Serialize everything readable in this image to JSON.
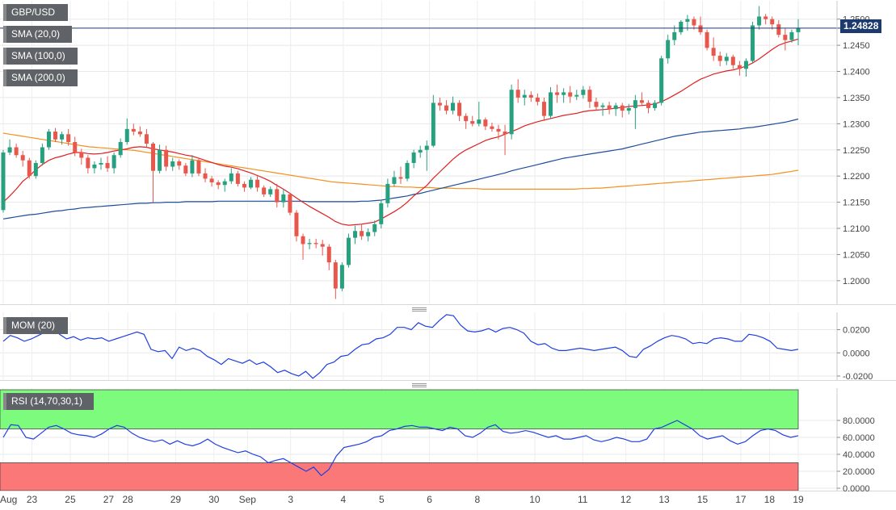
{
  "chart_data": {
    "type": "candlestick",
    "symbol": "GBP/USD",
    "last_price": "1.24828",
    "colors": {
      "up": "#26a07e",
      "down": "#e8574c",
      "sma20": "#e02020",
      "sma100": "#1e4d9c",
      "sma200": "#f4901e",
      "mom": "#1f3fe0",
      "rsi": "#1f3fe0",
      "rsi_overbought_fill": "#7dfb7d",
      "rsi_oversold_fill": "#fb7878"
    },
    "legend": {
      "main": [
        {
          "label": "GBP/USD",
          "color": "#26a07e"
        },
        {
          "label": "SMA (20,0)",
          "color": "#e02020"
        },
        {
          "label": "SMA (100,0)",
          "color": "#1e4d9c"
        },
        {
          "label": "SMA (200,0)",
          "color": "#f4901e"
        }
      ],
      "mom": {
        "label": "MOM (20)",
        "color": "#1f3fe0"
      },
      "rsi": {
        "label": "RSI (14,70,30,1)",
        "color": "#1f3fe0"
      }
    },
    "price_axis": {
      "ylim": [
        1.1955,
        1.2535
      ],
      "ticks": [
        "1.2500",
        "1.2450",
        "1.2400",
        "1.2350",
        "1.2300",
        "1.2250",
        "1.2200",
        "1.2150",
        "1.2100",
        "1.2050",
        "1.2000"
      ]
    },
    "mom_axis": {
      "ylim": [
        -0.0235,
        0.035
      ],
      "ticks": [
        "0.0200",
        "0.0000",
        "-0.0200"
      ]
    },
    "rsi_axis": {
      "ylim": [
        0,
        100
      ],
      "ticks": [
        "80.0000",
        "60.0000",
        "40.0000",
        "20.0000",
        "0.0000"
      ],
      "overbought": 70,
      "oversold": 30
    },
    "grid": true,
    "x_labels": [
      "Aug",
      "23",
      "25",
      "27",
      "28",
      "29",
      "30",
      "Sep",
      "3",
      "4",
      "5",
      "6",
      "8",
      "10",
      "11",
      "12",
      "13",
      "15",
      "17",
      "18",
      "19"
    ],
    "candles": [
      [
        1.2135,
        1.225,
        1.213,
        1.2245
      ],
      [
        1.2245,
        1.227,
        1.224,
        1.2255
      ],
      [
        1.2255,
        1.2262,
        1.2235,
        1.224
      ],
      [
        1.224,
        1.2248,
        1.2218,
        1.223
      ],
      [
        1.223,
        1.2235,
        1.2195,
        1.22
      ],
      [
        1.22,
        1.223,
        1.2195,
        1.2225
      ],
      [
        1.2225,
        1.2262,
        1.222,
        1.2255
      ],
      [
        1.2255,
        1.229,
        1.225,
        1.2285
      ],
      [
        1.2285,
        1.2292,
        1.2265,
        1.227
      ],
      [
        1.227,
        1.2285,
        1.226,
        1.228
      ],
      [
        1.228,
        1.229,
        1.2258,
        1.2265
      ],
      [
        1.2265,
        1.2275,
        1.2238,
        1.2245
      ],
      [
        1.2245,
        1.2252,
        1.2222,
        1.2235
      ],
      [
        1.2235,
        1.224,
        1.2205,
        1.2215
      ],
      [
        1.2215,
        1.2228,
        1.2205,
        1.2222
      ],
      [
        1.2222,
        1.2235,
        1.2212,
        1.2225
      ],
      [
        1.2225,
        1.2238,
        1.2208,
        1.2215
      ],
      [
        1.2215,
        1.2245,
        1.2205,
        1.224
      ],
      [
        1.224,
        1.2272,
        1.2235,
        1.2265
      ],
      [
        1.2265,
        1.231,
        1.226,
        1.229
      ],
      [
        1.229,
        1.23,
        1.2278,
        1.2285
      ],
      [
        1.2285,
        1.2295,
        1.2275,
        1.228
      ],
      [
        1.228,
        1.229,
        1.2255,
        1.2262
      ],
      [
        1.2262,
        1.2265,
        1.215,
        1.221
      ],
      [
        1.221,
        1.226,
        1.2205,
        1.225
      ],
      [
        1.225,
        1.2258,
        1.221,
        1.2218
      ],
      [
        1.2218,
        1.2235,
        1.221,
        1.2228
      ],
      [
        1.2228,
        1.2232,
        1.2212,
        1.222
      ],
      [
        1.222,
        1.2225,
        1.22,
        1.2205
      ],
      [
        1.2205,
        1.224,
        1.2198,
        1.223
      ],
      [
        1.223,
        1.2235,
        1.22,
        1.2205
      ],
      [
        1.2205,
        1.2215,
        1.2188,
        1.2195
      ],
      [
        1.2195,
        1.22,
        1.218,
        1.2188
      ],
      [
        1.2188,
        1.2192,
        1.2175,
        1.2183
      ],
      [
        1.2183,
        1.2195,
        1.217,
        1.219
      ],
      [
        1.219,
        1.2215,
        1.2185,
        1.2205
      ],
      [
        1.2205,
        1.221,
        1.218,
        1.2185
      ],
      [
        1.2185,
        1.219,
        1.217,
        1.2178
      ],
      [
        1.2178,
        1.2198,
        1.2175,
        1.2193
      ],
      [
        1.2193,
        1.22,
        1.217,
        1.2178
      ],
      [
        1.2178,
        1.2182,
        1.216,
        1.2165
      ],
      [
        1.2165,
        1.218,
        1.216,
        1.2175
      ],
      [
        1.2175,
        1.2185,
        1.214,
        1.215
      ],
      [
        1.215,
        1.2175,
        1.214,
        1.2165
      ],
      [
        1.2165,
        1.2168,
        1.2125,
        1.213
      ],
      [
        1.213,
        1.2135,
        1.2075,
        1.2085
      ],
      [
        1.2085,
        1.209,
        1.204,
        1.207
      ],
      [
        1.207,
        1.208,
        1.206,
        1.2072
      ],
      [
        1.2072,
        1.208,
        1.2062,
        1.207
      ],
      [
        1.207,
        1.2078,
        1.2048,
        1.2065
      ],
      [
        1.2065,
        1.207,
        1.202,
        1.2035
      ],
      [
        1.2035,
        1.204,
        1.1965,
        1.1985
      ],
      [
        1.1985,
        1.2035,
        1.198,
        1.203
      ],
      [
        1.203,
        1.209,
        1.2025,
        1.2082
      ],
      [
        1.2082,
        1.2105,
        1.207,
        1.2095
      ],
      [
        1.2095,
        1.2108,
        1.2078,
        1.2085
      ],
      [
        1.2085,
        1.21,
        1.2075,
        1.2093
      ],
      [
        1.2093,
        1.2115,
        1.2085,
        1.2108
      ],
      [
        1.2108,
        1.2155,
        1.21,
        1.2148
      ],
      [
        1.2148,
        1.2195,
        1.214,
        1.2185
      ],
      [
        1.2185,
        1.221,
        1.218,
        1.2198
      ],
      [
        1.2198,
        1.2218,
        1.2185,
        1.2195
      ],
      [
        1.2195,
        1.223,
        1.219,
        1.2225
      ],
      [
        1.2225,
        1.225,
        1.2215,
        1.2245
      ],
      [
        1.2245,
        1.2258,
        1.2235,
        1.225
      ],
      [
        1.225,
        1.2268,
        1.221,
        1.2258
      ],
      [
        1.2258,
        1.2355,
        1.2255,
        1.234
      ],
      [
        1.234,
        1.235,
        1.2325,
        1.2335
      ],
      [
        1.2335,
        1.2345,
        1.2318,
        1.2325
      ],
      [
        1.2325,
        1.2352,
        1.2318,
        1.234
      ],
      [
        1.234,
        1.2345,
        1.2305,
        1.2315
      ],
      [
        1.2315,
        1.232,
        1.229,
        1.2305
      ],
      [
        1.2305,
        1.2315,
        1.2295,
        1.23
      ],
      [
        1.23,
        1.2342,
        1.2295,
        1.2308
      ],
      [
        1.2308,
        1.2312,
        1.2288,
        1.2295
      ],
      [
        1.2295,
        1.2302,
        1.2285,
        1.229
      ],
      [
        1.229,
        1.2298,
        1.227,
        1.2285
      ],
      [
        1.2285,
        1.2298,
        1.224,
        1.228
      ],
      [
        1.228,
        1.2375,
        1.227,
        1.2365
      ],
      [
        1.2365,
        1.2385,
        1.234,
        1.235
      ],
      [
        1.235,
        1.2365,
        1.2335,
        1.2355
      ],
      [
        1.2355,
        1.2362,
        1.2342,
        1.235
      ],
      [
        1.235,
        1.2358,
        1.2335,
        1.2342
      ],
      [
        1.2342,
        1.235,
        1.2305,
        1.2315
      ],
      [
        1.2315,
        1.237,
        1.231,
        1.236
      ],
      [
        1.236,
        1.2375,
        1.234,
        1.2355
      ],
      [
        1.2355,
        1.2368,
        1.234,
        1.236
      ],
      [
        1.236,
        1.2372,
        1.234,
        1.2352
      ],
      [
        1.2352,
        1.2365,
        1.2345,
        1.2355
      ],
      [
        1.2355,
        1.2372,
        1.2348,
        1.2365
      ],
      [
        1.2365,
        1.2372,
        1.233,
        1.2342
      ],
      [
        1.2342,
        1.235,
        1.2325,
        1.2332
      ],
      [
        1.2332,
        1.234,
        1.2315,
        1.2335
      ],
      [
        1.2335,
        1.2342,
        1.2318,
        1.2328
      ],
      [
        1.2328,
        1.234,
        1.2315,
        1.2335
      ],
      [
        1.2335,
        1.234,
        1.2312,
        1.2325
      ],
      [
        1.2325,
        1.2338,
        1.2318,
        1.233
      ],
      [
        1.233,
        1.2355,
        1.229,
        1.2345
      ],
      [
        1.2345,
        1.236,
        1.2335,
        1.234
      ],
      [
        1.234,
        1.2345,
        1.232,
        1.233
      ],
      [
        1.233,
        1.2345,
        1.2325,
        1.234
      ],
      [
        1.234,
        1.243,
        1.2335,
        1.2425
      ],
      [
        1.2425,
        1.247,
        1.2415,
        1.246
      ],
      [
        1.246,
        1.2488,
        1.245,
        1.2475
      ],
      [
        1.2475,
        1.2498,
        1.247,
        1.2495
      ],
      [
        1.2495,
        1.2508,
        1.2478,
        1.25
      ],
      [
        1.25,
        1.2505,
        1.248,
        1.2488
      ],
      [
        1.2488,
        1.2505,
        1.247,
        1.2475
      ],
      [
        1.2475,
        1.248,
        1.244,
        1.2445
      ],
      [
        1.2445,
        1.2465,
        1.242,
        1.243
      ],
      [
        1.243,
        1.2438,
        1.241,
        1.242
      ],
      [
        1.242,
        1.2435,
        1.2412,
        1.2428
      ],
      [
        1.2428,
        1.2432,
        1.2405,
        1.2412
      ],
      [
        1.2412,
        1.242,
        1.2392,
        1.2405
      ],
      [
        1.2405,
        1.2425,
        1.239,
        1.242
      ],
      [
        1.242,
        1.2495,
        1.2415,
        1.2488
      ],
      [
        1.2488,
        1.2525,
        1.248,
        1.2505
      ],
      [
        1.2505,
        1.251,
        1.249,
        1.25
      ],
      [
        1.25,
        1.2505,
        1.248,
        1.249
      ],
      [
        1.249,
        1.2498,
        1.2465,
        1.247
      ],
      [
        1.247,
        1.2482,
        1.244,
        1.246
      ],
      [
        1.246,
        1.248,
        1.2455,
        1.2475
      ],
      [
        1.2475,
        1.25,
        1.245,
        1.2483
      ]
    ],
    "sma20": [
      1.215,
      1.2162,
      1.2175,
      1.219,
      1.22,
      1.2212,
      1.2222,
      1.223,
      1.2235,
      1.2238,
      1.2242,
      1.2245,
      1.2245,
      1.2243,
      1.2242,
      1.2243,
      1.2245,
      1.2248,
      1.225,
      1.2252,
      1.2255,
      1.2256,
      1.2255,
      1.2252,
      1.225,
      1.2248,
      1.2246,
      1.2243,
      1.224,
      1.2238,
      1.2234,
      1.223,
      1.2226,
      1.2222,
      1.2219,
      1.2217,
      1.2214,
      1.221,
      1.2206,
      1.2201,
      1.2196,
      1.219,
      1.2182,
      1.2175,
      1.2167,
      1.2158,
      1.215,
      1.2142,
      1.2135,
      1.2128,
      1.2121,
      1.2113,
      1.2108,
      1.2106,
      1.2107,
      1.2108,
      1.211,
      1.2112,
      1.2118,
      1.2125,
      1.2132,
      1.214,
      1.215,
      1.2162,
      1.2172,
      1.2182,
      1.2196,
      1.2208,
      1.222,
      1.2232,
      1.2242,
      1.225,
      1.2256,
      1.2262,
      1.2268,
      1.2272,
      1.2275,
      1.228,
      1.2285,
      1.229,
      1.2296,
      1.23,
      1.2304,
      1.2307,
      1.231,
      1.2313,
      1.2316,
      1.2318,
      1.232,
      1.2323,
      1.2325,
      1.2326,
      1.2327,
      1.2328,
      1.233,
      1.2331,
      1.2333,
      1.2334,
      1.2335,
      1.2336,
      1.2338,
      1.2342,
      1.2348,
      1.2355,
      1.2362,
      1.237,
      1.2378,
      1.2385,
      1.239,
      1.2395,
      1.2398,
      1.2401,
      1.2403,
      1.2406,
      1.241,
      1.2416,
      1.2424,
      1.2433,
      1.2442,
      1.245,
      1.2455,
      1.2458,
      1.2462
    ],
    "sma100": [
      1.2118,
      1.212,
      1.2122,
      1.2124,
      1.2126,
      1.2127,
      1.2129,
      1.2131,
      1.2133,
      1.2134,
      1.2136,
      1.2137,
      1.2139,
      1.214,
      1.2141,
      1.2142,
      1.2143,
      1.2144,
      1.2145,
      1.2146,
      1.2147,
      1.2148,
      1.2148,
      1.2149,
      1.2149,
      1.215,
      1.215,
      1.215,
      1.2151,
      1.2151,
      1.2151,
      1.2151,
      1.2151,
      1.2152,
      1.2152,
      1.2152,
      1.2152,
      1.2152,
      1.2152,
      1.2152,
      1.2152,
      1.2152,
      1.2152,
      1.2152,
      1.2152,
      1.2152,
      1.2152,
      1.2151,
      1.2151,
      1.2151,
      1.2151,
      1.2151,
      1.2151,
      1.2151,
      1.2151,
      1.2152,
      1.2152,
      1.2153,
      1.2154,
      1.2156,
      1.2158,
      1.216,
      1.2162,
      1.2165,
      1.2167,
      1.217,
      1.2173,
      1.2176,
      1.2179,
      1.2182,
      1.2185,
      1.2188,
      1.2191,
      1.2194,
      1.2197,
      1.22,
      1.2203,
      1.2206,
      1.221,
      1.2213,
      1.2216,
      1.2219,
      1.2222,
      1.2225,
      1.2228,
      1.2231,
      1.2234,
      1.2236,
      1.2238,
      1.224,
      1.2242,
      1.2244,
      1.2246,
      1.2248,
      1.225,
      1.2252,
      1.2255,
      1.2258,
      1.2261,
      1.2264,
      1.2267,
      1.227,
      1.2273,
      1.2276,
      1.2278,
      1.228,
      1.2282,
      1.2284,
      1.2285,
      1.2286,
      1.2287,
      1.2288,
      1.2289,
      1.229,
      1.2292,
      1.2293,
      1.2295,
      1.2297,
      1.2299,
      1.2301,
      1.2303,
      1.2306,
      1.2309
    ],
    "sma200": [
      1.2282,
      1.228,
      1.2278,
      1.2276,
      1.2274,
      1.2272,
      1.227,
      1.2268,
      1.2266,
      1.2264,
      1.2262,
      1.226,
      1.2258,
      1.2256,
      1.2255,
      1.2254,
      1.2253,
      1.2252,
      1.2251,
      1.225,
      1.2249,
      1.2247,
      1.2245,
      1.2243,
      1.2241,
      1.2239,
      1.2237,
      1.2235,
      1.2233,
      1.2231,
      1.2229,
      1.2227,
      1.2225,
      1.2223,
      1.2221,
      1.2219,
      1.2217,
      1.2215,
      1.2213,
      1.2211,
      1.2209,
      1.2207,
      1.2205,
      1.2203,
      1.2201,
      1.2199,
      1.2197,
      1.2195,
      1.2193,
      1.2191,
      1.2189,
      1.2188,
      1.2187,
      1.2186,
      1.2185,
      1.2184,
      1.2183,
      1.2182,
      1.2181,
      1.218,
      1.218,
      1.2179,
      1.2179,
      1.2178,
      1.2178,
      1.2178,
      1.2177,
      1.2177,
      1.2177,
      1.2176,
      1.2176,
      1.2176,
      1.2176,
      1.2175,
      1.2175,
      1.2175,
      1.2175,
      1.2175,
      1.2175,
      1.2175,
      1.2175,
      1.2175,
      1.2175,
      1.2175,
      1.2175,
      1.2175,
      1.2175,
      1.2175,
      1.2176,
      1.2176,
      1.2177,
      1.2177,
      1.2178,
      1.2179,
      1.218,
      1.2181,
      1.2182,
      1.2183,
      1.2184,
      1.2185,
      1.2186,
      1.2187,
      1.2188,
      1.2189,
      1.219,
      1.2191,
      1.2192,
      1.2193,
      1.2194,
      1.2195,
      1.2196,
      1.2197,
      1.2198,
      1.2199,
      1.22,
      1.2201,
      1.2202,
      1.2203,
      1.2205,
      1.2207,
      1.2209,
      1.2211
    ],
    "mom": [
      0.01,
      0.015,
      0.013,
      0.01,
      0.012,
      0.015,
      0.018,
      0.022,
      0.016,
      0.012,
      0.014,
      0.011,
      0.013,
      0.012,
      0.013,
      0.01,
      0.012,
      0.014,
      0.016,
      0.018,
      0.016,
      0.003,
      0.001,
      0.002,
      -0.005,
      0.005,
      0.002,
      0.004,
      0.002,
      -0.003,
      -0.006,
      -0.01,
      -0.005,
      -0.007,
      -0.009,
      -0.006,
      -0.01,
      -0.008,
      -0.012,
      -0.017,
      -0.015,
      -0.018,
      -0.02,
      -0.016,
      -0.022,
      -0.017,
      -0.01,
      -0.008,
      -0.003,
      -0.002,
      0.003,
      0.007,
      0.008,
      0.012,
      0.013,
      0.016,
      0.022,
      0.022,
      0.02,
      0.026,
      0.023,
      0.022,
      0.028,
      0.033,
      0.032,
      0.024,
      0.019,
      0.018,
      0.019,
      0.021,
      0.018,
      0.021,
      0.022,
      0.02,
      0.017,
      0.01,
      0.007,
      0.008,
      0.004,
      0.002,
      0.002,
      0.003,
      0.004,
      0.003,
      0.002,
      0.003,
      0.004,
      0.005,
      0.002,
      -0.003,
      -0.004,
      0.003,
      0.006,
      0.01,
      0.013,
      0.015,
      0.014,
      0.012,
      0.008,
      0.009,
      0.008,
      0.012,
      0.013,
      0.012,
      0.01,
      0.01,
      0.016,
      0.015,
      0.013,
      0.01,
      0.004,
      0.003,
      0.002,
      0.003
    ],
    "rsi": [
      60,
      75,
      74,
      60,
      58,
      65,
      72,
      74,
      70,
      65,
      63,
      62,
      60,
      64,
      70,
      74,
      72,
      65,
      60,
      57,
      55,
      57,
      52,
      56,
      52,
      50,
      53,
      58,
      52,
      48,
      45,
      42,
      44,
      40,
      37,
      30,
      33,
      35,
      30,
      25,
      20,
      25,
      15,
      22,
      38,
      48,
      50,
      52,
      55,
      60,
      62,
      68,
      70,
      73,
      74,
      72,
      72,
      70,
      68,
      72,
      70,
      62,
      60,
      65,
      72,
      75,
      67,
      65,
      66,
      68,
      66,
      63,
      60,
      62,
      58,
      58,
      60,
      62,
      57,
      55,
      57,
      60,
      58,
      55,
      55,
      58,
      70,
      72,
      76,
      80,
      75,
      70,
      62,
      58,
      60,
      62,
      56,
      52,
      55,
      62,
      68,
      70,
      68,
      63,
      60,
      62
    ]
  }
}
